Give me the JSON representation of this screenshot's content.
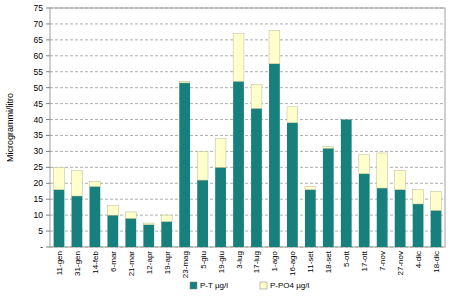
{
  "chart_data": {
    "type": "bar",
    "stacked": true,
    "grid": true,
    "legend": "bottom",
    "y_label": "Microgrammi/litro",
    "categories": [
      "11-gen",
      "31-gen",
      "14-feb",
      "6-mar",
      "21-mar",
      "12-apr",
      "19-apr",
      "23-mag",
      "5-giu",
      "19-giu",
      "3-lug",
      "17-lug",
      "1-ago",
      "16-ago",
      "11-set",
      "18-set",
      "5-ott",
      "17-ott",
      "7-nov",
      "27-nov",
      "4-dic",
      "18-dic"
    ],
    "series": [
      {
        "name": "P-T µg/l",
        "color": "#17807c",
        "values": [
          18,
          16,
          19,
          10,
          9,
          7,
          8,
          51.5,
          21,
          25,
          52,
          43.5,
          57.5,
          39,
          18,
          31,
          40,
          23,
          18.5,
          18,
          13.5,
          11.5
        ]
      },
      {
        "name": "P-PO4 µg/l",
        "color": "#ffffcc",
        "values": [
          7,
          8,
          1.5,
          3,
          2,
          0.5,
          2,
          0.5,
          9,
          9,
          15,
          7.5,
          10.5,
          5,
          1,
          0.5,
          0,
          6,
          11,
          6,
          4.5,
          6
        ]
      }
    ],
    "ylim": [
      0,
      75
    ],
    "yticks": [
      {
        "value": 0,
        "label": "-"
      },
      5,
      10,
      15,
      20,
      25,
      30,
      35,
      40,
      45,
      50,
      55,
      60,
      65,
      70,
      75
    ]
  }
}
